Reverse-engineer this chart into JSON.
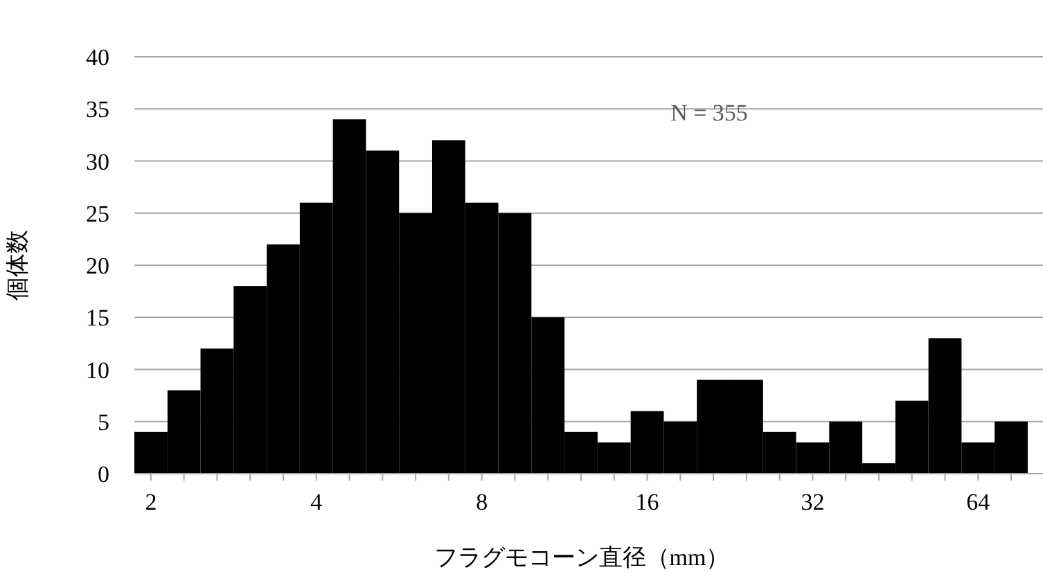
{
  "chart_data": {
    "type": "histogram",
    "xlabel": "フラグモコーン直径（mm）",
    "ylabel": "個体数",
    "annotations": [
      "N = 355"
    ],
    "bins": [
      1.866,
      2.144,
      2.462,
      2.828,
      3.249,
      3.732,
      4.287,
      4.925,
      5.657,
      6.498,
      7.464,
      8.574,
      9.849,
      11.314,
      12.996,
      14.929,
      17.148,
      19.698,
      22.627,
      25.992,
      29.857,
      34.297,
      39.397,
      45.255,
      51.984,
      59.714,
      68.593,
      78.793
    ],
    "values": [
      4,
      8,
      12,
      18,
      22,
      26,
      34,
      31,
      25,
      32,
      26,
      25,
      15,
      4,
      3,
      6,
      5,
      9,
      9,
      4,
      3,
      5,
      1,
      7,
      13,
      3,
      5
    ],
    "color": "#000000",
    "log": "x",
    "xlim": [
      1.866,
      84
    ],
    "xticks": [
      2,
      {
        "value": 2.297,
        "label": null
      },
      {
        "value": 2.639,
        "label": null
      },
      {
        "value": 3.031,
        "label": null
      },
      {
        "value": 3.482,
        "label": null
      },
      4,
      {
        "value": 4.595,
        "label": null
      },
      {
        "value": 5.278,
        "label": null
      },
      {
        "value": 6.063,
        "label": null
      },
      {
        "value": 6.964,
        "label": null
      },
      8,
      {
        "value": 9.19,
        "label": null
      },
      {
        "value": 10.556,
        "label": null
      },
      {
        "value": 12.126,
        "label": null
      },
      {
        "value": 13.929,
        "label": null
      },
      16,
      {
        "value": 18.379,
        "label": null
      },
      {
        "value": 21.112,
        "label": null
      },
      {
        "value": 24.251,
        "label": null
      },
      {
        "value": 27.858,
        "label": null
      },
      32,
      {
        "value": 36.758,
        "label": null
      },
      {
        "value": 42.224,
        "label": null
      },
      {
        "value": 48.503,
        "label": null
      },
      {
        "value": 55.715,
        "label": null
      },
      64,
      {
        "value": 73.517,
        "label": null
      }
    ],
    "ylim": [
      0,
      40
    ],
    "yticks": [
      0,
      5,
      10,
      15,
      20,
      25,
      30,
      35,
      40
    ],
    "grid": "y"
  }
}
